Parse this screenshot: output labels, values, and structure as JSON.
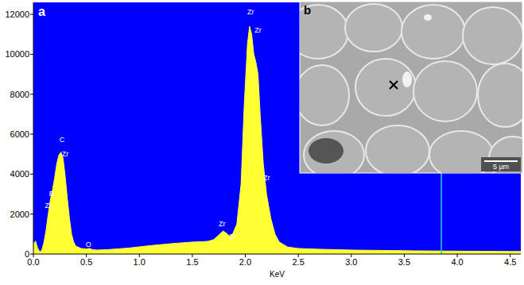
{
  "chart_data": {
    "type": "area",
    "x_label": "KeV",
    "panel_label": "a",
    "color": "#ffff33",
    "x": [
      0.0,
      0.02,
      0.04,
      0.06,
      0.08,
      0.1,
      0.12,
      0.14,
      0.16,
      0.18,
      0.2,
      0.22,
      0.24,
      0.26,
      0.28,
      0.3,
      0.32,
      0.34,
      0.36,
      0.38,
      0.4,
      0.45,
      0.5,
      0.53,
      0.56,
      0.6,
      0.7,
      0.8,
      0.9,
      1.0,
      1.1,
      1.2,
      1.3,
      1.4,
      1.5,
      1.6,
      1.65,
      1.7,
      1.75,
      1.79,
      1.82,
      1.85,
      1.88,
      1.92,
      1.96,
      1.99,
      2.02,
      2.04,
      2.06,
      2.08,
      2.1,
      2.12,
      2.14,
      2.17,
      2.2,
      2.24,
      2.28,
      2.32,
      2.4,
      2.5,
      2.7,
      3.0,
      3.3,
      3.6,
      3.9,
      4.2,
      4.5,
      4.6
    ],
    "values": [
      500,
      650,
      300,
      100,
      200,
      600,
      1200,
      2000,
      2700,
      3200,
      3800,
      4500,
      4950,
      5100,
      4800,
      3900,
      2800,
      1800,
      1000,
      600,
      400,
      280,
      250,
      280,
      220,
      200,
      220,
      260,
      300,
      360,
      420,
      470,
      520,
      560,
      600,
      620,
      640,
      720,
      950,
      1150,
      1050,
      900,
      1000,
      1500,
      3500,
      7500,
      10500,
      11400,
      11000,
      10000,
      9600,
      9000,
      7000,
      4500,
      3000,
      1800,
      1000,
      600,
      350,
      280,
      240,
      200,
      180,
      160,
      150,
      140,
      130,
      130
    ],
    "xlim": [
      0,
      4.6
    ],
    "xticks": [
      {
        "value": 0,
        "label": "0.0"
      },
      {
        "value": 0.5,
        "label": "0.5"
      },
      {
        "value": 1,
        "label": "1.0"
      },
      {
        "value": 1.5,
        "label": "1.5"
      },
      {
        "value": 2,
        "label": "2.0"
      },
      {
        "value": 2.5,
        "label": "2.5"
      },
      {
        "value": 3,
        "label": "3.0"
      },
      {
        "value": 3.5,
        "label": "3.5"
      },
      {
        "value": 4,
        "label": "4.0"
      },
      {
        "value": 4.5,
        "label": "4.5"
      }
    ],
    "ylim": [
      0,
      12600
    ],
    "yticks": [
      0,
      2000,
      4000,
      6000,
      8000,
      10000,
      12000
    ],
    "cursor_x": 3.85,
    "annotations": [
      {
        "text": "C",
        "x": 0.27,
        "y": 5600
      },
      {
        "text": "Zr",
        "x": 0.3,
        "y": 4900
      },
      {
        "text": "B",
        "x": 0.17,
        "y": 2900
      },
      {
        "text": "Zr",
        "x": 0.14,
        "y": 2300
      },
      {
        "text": "O",
        "x": 0.52,
        "y": 350
      },
      {
        "text": "Zr",
        "x": 2.05,
        "y": 12000
      },
      {
        "text": "Zr",
        "x": 2.12,
        "y": 11100
      },
      {
        "text": "Zr",
        "x": 1.78,
        "y": 1400
      },
      {
        "text": "Zr",
        "x": 1.88,
        "y": 750
      },
      {
        "text": "Zr",
        "x": 2.2,
        "y": 3700
      }
    ],
    "inset": {
      "label": "b",
      "scale_bar": "5 µm"
    }
  }
}
